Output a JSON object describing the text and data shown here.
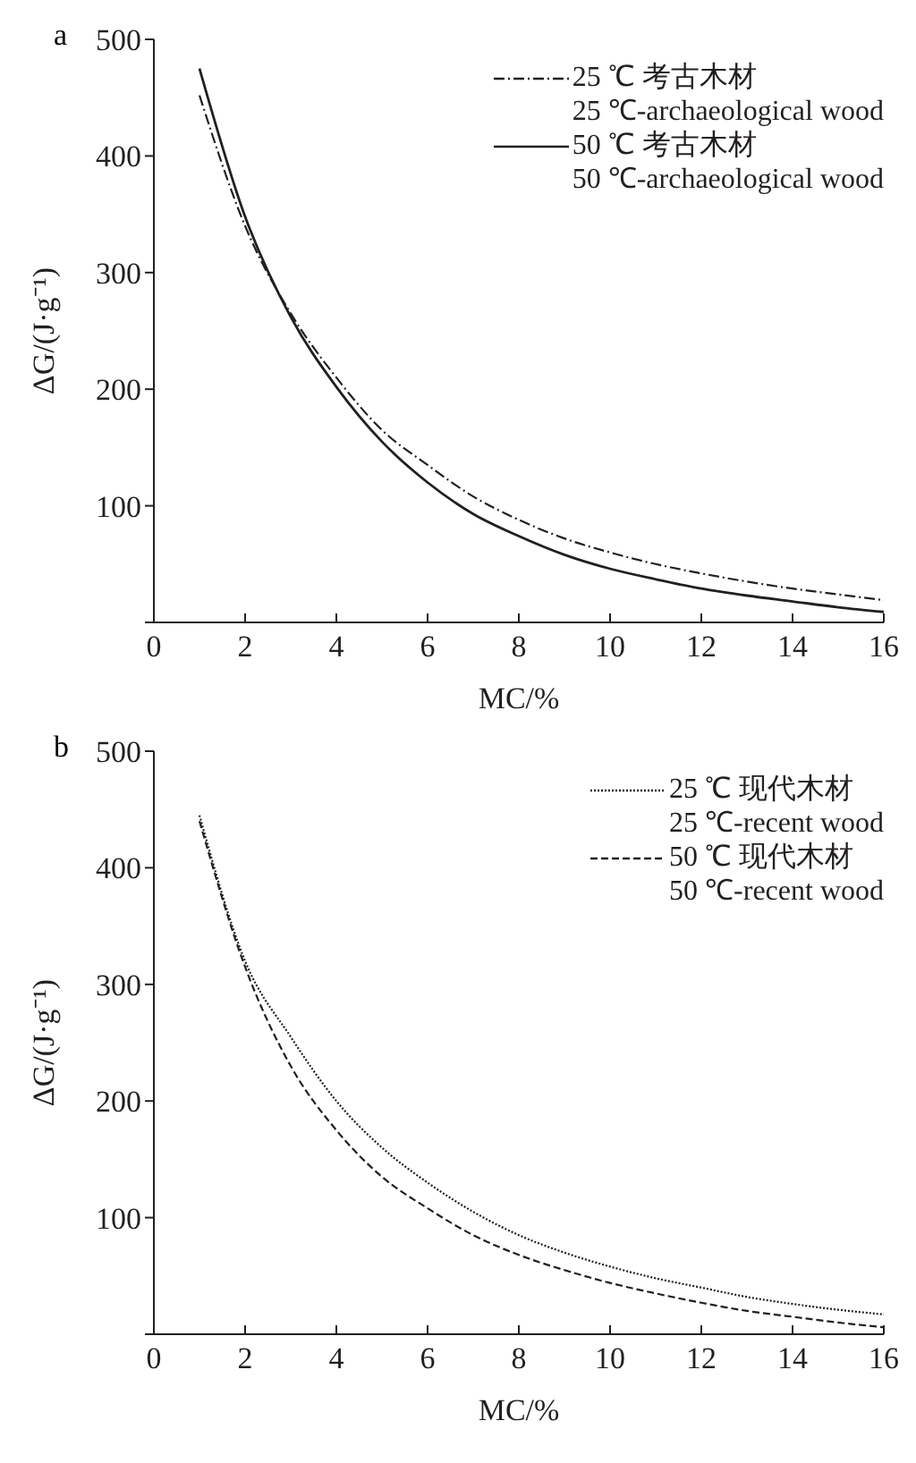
{
  "chart_data": [
    {
      "type": "line",
      "title": "a",
      "xlabel": "MC/%",
      "ylabel": "ΔG/(J·g⁻¹)",
      "x": [
        1,
        2,
        3,
        4,
        5,
        6,
        7,
        8,
        9,
        10,
        11,
        12,
        13,
        14,
        15,
        16
      ],
      "xlim": [
        0,
        16
      ],
      "ylim": [
        0,
        500
      ],
      "xticks": [
        0,
        2,
        4,
        6,
        8,
        10,
        12,
        14,
        16
      ],
      "yticks": [
        {
          "value": 0,
          "label": null
        },
        100,
        200,
        300,
        400,
        500
      ],
      "grid": false,
      "legend": "top right",
      "marker": "none",
      "series": [
        {
          "name": "25 ℃ 考古木材\n25 ℃-archaeological wood",
          "color": "#231f20",
          "line_style": "dashdot",
          "values": [
            452,
            340,
            265,
            210,
            165,
            135,
            108,
            88,
            72,
            60,
            50,
            42,
            35,
            29,
            24,
            19
          ]
        },
        {
          "name": "50 ℃ 考古木材\n50 ℃-archaeological wood",
          "color": "#231f20",
          "line_style": "solid",
          "values": [
            475,
            348,
            262,
            202,
            155,
            120,
            93,
            74,
            58,
            46,
            37,
            29,
            23,
            18,
            13,
            9
          ]
        }
      ]
    },
    {
      "type": "line",
      "title": "b",
      "xlabel": "MC/%",
      "ylabel": "ΔG/(J·g⁻¹)",
      "x": [
        1,
        2,
        3,
        4,
        5,
        6,
        7,
        8,
        9,
        10,
        11,
        12,
        13,
        14,
        15,
        16
      ],
      "xlim": [
        0,
        16
      ],
      "ylim": [
        0,
        500
      ],
      "xticks": [
        0,
        2,
        4,
        6,
        8,
        10,
        12,
        14,
        16
      ],
      "yticks": [
        {
          "value": 0,
          "label": null
        },
        100,
        200,
        300,
        400,
        500
      ],
      "grid": false,
      "legend": "top right",
      "marker": "none",
      "series": [
        {
          "name": "25 ℃ 现代木材\n25 ℃-recent wood",
          "color": "#231f20",
          "line_style": "dotted",
          "values": [
            445,
            320,
            255,
            200,
            160,
            130,
            105,
            85,
            70,
            58,
            48,
            40,
            32,
            26,
            21,
            17
          ]
        },
        {
          "name": "50 ℃ 现代木材\n50 ℃-recent wood",
          "color": "#231f20",
          "line_style": "dashed",
          "values": [
            440,
            315,
            230,
            175,
            135,
            108,
            85,
            68,
            55,
            44,
            35,
            27,
            20,
            15,
            10,
            6
          ]
        }
      ]
    }
  ]
}
